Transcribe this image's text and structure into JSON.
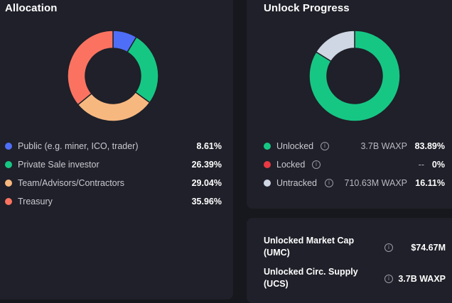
{
  "allocation": {
    "title": "Allocation",
    "items": [
      {
        "label": "Public (e.g. miner, ICO, trader)",
        "percent": "8.61%",
        "value": 8.61,
        "color": "#4f6ef7"
      },
      {
        "label": "Private Sale investor",
        "percent": "26.39%",
        "value": 26.39,
        "color": "#16c784"
      },
      {
        "label": "Team/Advisors/Contractors",
        "percent": "29.04%",
        "value": 29.04,
        "color": "#f7b87f"
      },
      {
        "label": "Treasury",
        "percent": "35.96%",
        "value": 35.96,
        "color": "#fb7360"
      }
    ]
  },
  "unlock": {
    "title": "Unlock Progress",
    "info_icon": "info-icon",
    "items": [
      {
        "label": "Unlocked",
        "amount": "3.7B WAXP",
        "percent": "83.89%",
        "value": 83.89,
        "color": "#16c784"
      },
      {
        "label": "Locked",
        "amount": "--",
        "percent": "0%",
        "value": 0,
        "color": "#ea3943"
      },
      {
        "label": "Untracked",
        "amount": "710.63M WAXP",
        "percent": "16.11%",
        "value": 16.11,
        "color": "#cfd6e4"
      }
    ]
  },
  "metrics": [
    {
      "label_line1": "Unlocked Market Cap",
      "label_line2": "(UMC)",
      "value": "$74.67M"
    },
    {
      "label_line1": "Unlocked Circ. Supply",
      "label_line2": "(UCS)",
      "value": "3.7B WAXP"
    }
  ],
  "colors": {
    "background": "#17181d",
    "panel": "#1f2029",
    "text": "#ffffff",
    "muted": "#c9cad1"
  }
}
